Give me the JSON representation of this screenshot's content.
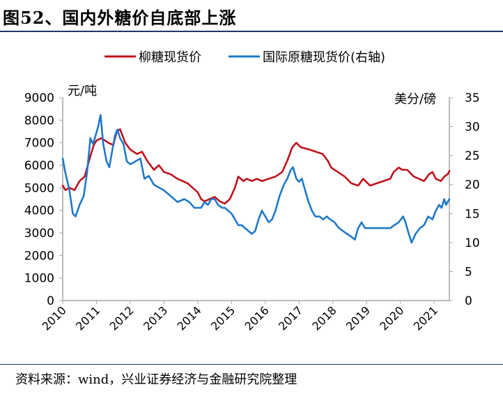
{
  "figure": {
    "title": "图52、国内外糖价自底部上涨",
    "source": "资料来源：wind，兴业证券经济与金融研究院整理"
  },
  "colors": {
    "series1": "#c0121b",
    "series2": "#1f78c8",
    "axis": "#a6a6a6"
  },
  "chart_data": {
    "type": "line",
    "ylabel_left": "元/吨",
    "ylabel_right": "美分/磅",
    "x_ticks": [
      "2010",
      "2011",
      "2012",
      "2013",
      "2014",
      "2015",
      "2016",
      "2017",
      "2018",
      "2019",
      "2020",
      "2021"
    ],
    "xlim": [
      2010.0,
      2021.45
    ],
    "ylim_left": [
      0,
      9000
    ],
    "ylim_right": [
      0,
      35
    ],
    "y_ticks_left": [
      0,
      1000,
      2000,
      3000,
      4000,
      5000,
      6000,
      7000,
      8000,
      9000
    ],
    "y_ticks_right": [
      0,
      5,
      10,
      15,
      20,
      25,
      30,
      35
    ],
    "grid": false,
    "legend_position": "top",
    "series": [
      {
        "name": "柳糖现货价",
        "axis": "left",
        "points": [
          [
            2010.0,
            5100
          ],
          [
            2010.08,
            4900
          ],
          [
            2010.2,
            5000
          ],
          [
            2010.35,
            4900
          ],
          [
            2010.5,
            5300
          ],
          [
            2010.65,
            5500
          ],
          [
            2010.8,
            6300
          ],
          [
            2010.92,
            6900
          ],
          [
            2011.0,
            7100
          ],
          [
            2011.15,
            7200
          ],
          [
            2011.35,
            7000
          ],
          [
            2011.5,
            6900
          ],
          [
            2011.6,
            7500
          ],
          [
            2011.7,
            7600
          ],
          [
            2011.85,
            7000
          ],
          [
            2012.0,
            6700
          ],
          [
            2012.2,
            6500
          ],
          [
            2012.35,
            6600
          ],
          [
            2012.5,
            6200
          ],
          [
            2012.7,
            5800
          ],
          [
            2012.85,
            6000
          ],
          [
            2013.0,
            5700
          ],
          [
            2013.2,
            5600
          ],
          [
            2013.4,
            5400
          ],
          [
            2013.55,
            5300
          ],
          [
            2013.7,
            5200
          ],
          [
            2013.85,
            5000
          ],
          [
            2014.0,
            4800
          ],
          [
            2014.1,
            4500
          ],
          [
            2014.2,
            4400
          ],
          [
            2014.35,
            4500
          ],
          [
            2014.5,
            4600
          ],
          [
            2014.65,
            4400
          ],
          [
            2014.8,
            4300
          ],
          [
            2014.95,
            4500
          ],
          [
            2015.1,
            5000
          ],
          [
            2015.2,
            5500
          ],
          [
            2015.35,
            5300
          ],
          [
            2015.45,
            5400
          ],
          [
            2015.6,
            5300
          ],
          [
            2015.75,
            5400
          ],
          [
            2015.9,
            5300
          ],
          [
            2016.1,
            5400
          ],
          [
            2016.3,
            5500
          ],
          [
            2016.5,
            5700
          ],
          [
            2016.65,
            6200
          ],
          [
            2016.8,
            6800
          ],
          [
            2016.92,
            7000
          ],
          [
            2017.05,
            6800
          ],
          [
            2017.3,
            6700
          ],
          [
            2017.5,
            6600
          ],
          [
            2017.7,
            6500
          ],
          [
            2017.85,
            6200
          ],
          [
            2017.95,
            5900
          ],
          [
            2018.15,
            5700
          ],
          [
            2018.35,
            5500
          ],
          [
            2018.55,
            5200
          ],
          [
            2018.75,
            5100
          ],
          [
            2018.9,
            5400
          ],
          [
            2019.1,
            5100
          ],
          [
            2019.3,
            5200
          ],
          [
            2019.5,
            5300
          ],
          [
            2019.7,
            5400
          ],
          [
            2019.8,
            5700
          ],
          [
            2019.95,
            5900
          ],
          [
            2020.05,
            5800
          ],
          [
            2020.2,
            5800
          ],
          [
            2020.4,
            5500
          ],
          [
            2020.55,
            5400
          ],
          [
            2020.7,
            5300
          ],
          [
            2020.85,
            5600
          ],
          [
            2020.95,
            5700
          ],
          [
            2021.05,
            5400
          ],
          [
            2021.2,
            5300
          ],
          [
            2021.3,
            5500
          ],
          [
            2021.4,
            5600
          ],
          [
            2021.45,
            5750
          ]
        ]
      },
      {
        "name": "国际原糖现货价(右轴)",
        "axis": "right",
        "points": [
          [
            2010.0,
            24.5
          ],
          [
            2010.08,
            22.0
          ],
          [
            2010.2,
            19.0
          ],
          [
            2010.3,
            15.0
          ],
          [
            2010.38,
            14.5
          ],
          [
            2010.5,
            16.5
          ],
          [
            2010.62,
            18.0
          ],
          [
            2010.72,
            22.0
          ],
          [
            2010.82,
            28.0
          ],
          [
            2010.9,
            27.0
          ],
          [
            2011.0,
            29.0
          ],
          [
            2011.05,
            30.0
          ],
          [
            2011.12,
            32.0
          ],
          [
            2011.2,
            27.0
          ],
          [
            2011.3,
            24.0
          ],
          [
            2011.38,
            23.0
          ],
          [
            2011.47,
            26.0
          ],
          [
            2011.55,
            28.5
          ],
          [
            2011.62,
            29.5
          ],
          [
            2011.7,
            28.0
          ],
          [
            2011.8,
            27.0
          ],
          [
            2011.9,
            24.0
          ],
          [
            2012.0,
            23.5
          ],
          [
            2012.15,
            24.0
          ],
          [
            2012.3,
            24.5
          ],
          [
            2012.42,
            21.0
          ],
          [
            2012.55,
            21.5
          ],
          [
            2012.7,
            20.0
          ],
          [
            2012.85,
            19.5
          ],
          [
            2013.0,
            19.0
          ],
          [
            2013.2,
            18.0
          ],
          [
            2013.4,
            17.0
          ],
          [
            2013.6,
            17.5
          ],
          [
            2013.75,
            17.0
          ],
          [
            2013.9,
            16.0
          ],
          [
            2014.0,
            16.0
          ],
          [
            2014.1,
            16.0
          ],
          [
            2014.2,
            17.0
          ],
          [
            2014.3,
            16.5
          ],
          [
            2014.4,
            17.5
          ],
          [
            2014.5,
            17.5
          ],
          [
            2014.6,
            16.5
          ],
          [
            2014.72,
            16.0
          ],
          [
            2014.8,
            16.0
          ],
          [
            2014.9,
            15.5
          ],
          [
            2015.0,
            15.0
          ],
          [
            2015.1,
            14.0
          ],
          [
            2015.2,
            13.0
          ],
          [
            2015.3,
            13.0
          ],
          [
            2015.4,
            12.5
          ],
          [
            2015.5,
            12.0
          ],
          [
            2015.6,
            11.5
          ],
          [
            2015.7,
            12.0
          ],
          [
            2015.8,
            14.0
          ],
          [
            2015.9,
            15.5
          ],
          [
            2016.0,
            14.5
          ],
          [
            2016.1,
            13.5
          ],
          [
            2016.2,
            14.0
          ],
          [
            2016.3,
            15.5
          ],
          [
            2016.42,
            18.0
          ],
          [
            2016.55,
            20.0
          ],
          [
            2016.65,
            21.0
          ],
          [
            2016.75,
            22.5
          ],
          [
            2016.82,
            23.0
          ],
          [
            2016.92,
            21.0
          ],
          [
            2017.0,
            20.5
          ],
          [
            2017.08,
            21.0
          ],
          [
            2017.18,
            19.0
          ],
          [
            2017.28,
            17.0
          ],
          [
            2017.38,
            15.5
          ],
          [
            2017.48,
            14.5
          ],
          [
            2017.6,
            14.5
          ],
          [
            2017.72,
            14.0
          ],
          [
            2017.82,
            14.5
          ],
          [
            2017.92,
            14.0
          ],
          [
            2018.05,
            13.5
          ],
          [
            2018.18,
            12.5
          ],
          [
            2018.3,
            12.0
          ],
          [
            2018.42,
            11.5
          ],
          [
            2018.55,
            11.0
          ],
          [
            2018.65,
            10.5
          ],
          [
            2018.75,
            12.5
          ],
          [
            2018.85,
            13.5
          ],
          [
            2018.95,
            12.5
          ],
          [
            2019.1,
            12.5
          ],
          [
            2019.25,
            12.5
          ],
          [
            2019.4,
            12.5
          ],
          [
            2019.55,
            12.5
          ],
          [
            2019.7,
            12.5
          ],
          [
            2019.82,
            13.0
          ],
          [
            2019.95,
            13.5
          ],
          [
            2020.08,
            14.5
          ],
          [
            2020.15,
            13.5
          ],
          [
            2020.25,
            11.5
          ],
          [
            2020.33,
            10.0
          ],
          [
            2020.45,
            11.5
          ],
          [
            2020.58,
            12.5
          ],
          [
            2020.7,
            13.0
          ],
          [
            2020.82,
            14.5
          ],
          [
            2020.95,
            14.0
          ],
          [
            2021.05,
            15.5
          ],
          [
            2021.15,
            16.5
          ],
          [
            2021.22,
            16.0
          ],
          [
            2021.3,
            17.5
          ],
          [
            2021.35,
            16.5
          ],
          [
            2021.4,
            17.0
          ],
          [
            2021.45,
            17.5
          ]
        ]
      }
    ]
  }
}
